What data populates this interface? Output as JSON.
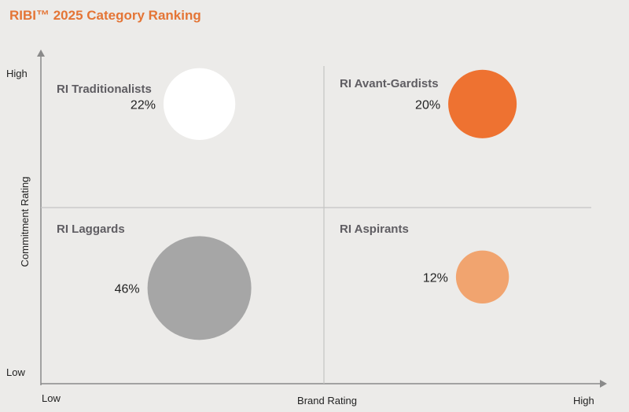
{
  "chart_data": {
    "type": "scatter",
    "title": "RIBI™ 2025 Category Ranking",
    "xlabel": "Brand Rating",
    "ylabel": "Commitment Rating",
    "x_ticks": {
      "low": "Low",
      "high": "High"
    },
    "y_ticks": {
      "low": "Low",
      "high": "High"
    },
    "quadrants": [
      {
        "label": "RI Traditionalists"
      },
      {
        "label": "RI Avant-Gardists"
      },
      {
        "label": "RI Laggards"
      },
      {
        "label": "RI Aspirants"
      }
    ],
    "points": [
      {
        "name": "RI Traditionalists",
        "label": "22%",
        "size": 22,
        "x": 0.28,
        "y": 0.76,
        "color": "#ffffff"
      },
      {
        "name": "RI Avant-Gardists",
        "label": "20%",
        "size": 20,
        "x": 0.78,
        "y": 0.76,
        "color": "#ee7231"
      },
      {
        "name": "RI Laggards",
        "label": "46%",
        "size": 46,
        "x": 0.28,
        "y": 0.26,
        "color": "#a6a6a6"
      },
      {
        "name": "RI Aspirants",
        "label": "12%",
        "size": 12,
        "x": 0.78,
        "y": 0.29,
        "color": "#f1a46f"
      }
    ],
    "xlim": [
      0,
      1
    ],
    "ylim": [
      0,
      1
    ],
    "grid": "quadrant dividers at midpoints"
  }
}
